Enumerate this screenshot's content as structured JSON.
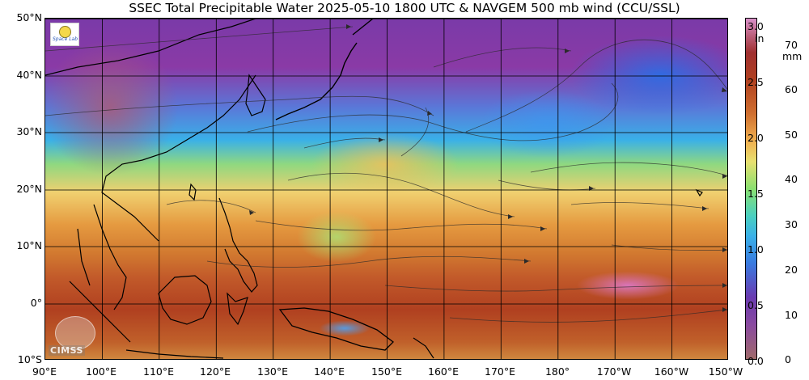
{
  "title": "SSEC Total Precipitable Water  2025-05-10 1800 UTC & NAVGEM 500 mb wind (CCU/SSL)",
  "latitude_labels": [
    "50°N",
    "40°N",
    "30°N",
    "20°N",
    "10°N",
    "0°",
    "10°S"
  ],
  "longitude_labels": [
    "90°E",
    "100°E",
    "110°E",
    "120°E",
    "130°E",
    "140°E",
    "150°E",
    "160°E",
    "170°E",
    "180°",
    "170°W",
    "160°W",
    "150°W"
  ],
  "colorbar": {
    "unit_in": "in",
    "unit_mm": "mm",
    "in_ticks": [
      "3.0",
      "2.5",
      "2.0",
      "1.5",
      "1.0",
      "0.5",
      "0.0"
    ],
    "mm_ticks": [
      "70",
      "60",
      "50",
      "40",
      "30",
      "20",
      "10",
      "0"
    ]
  },
  "logo": {
    "text": "Space Lab"
  },
  "watermark": {
    "text": "CIMSS"
  }
}
